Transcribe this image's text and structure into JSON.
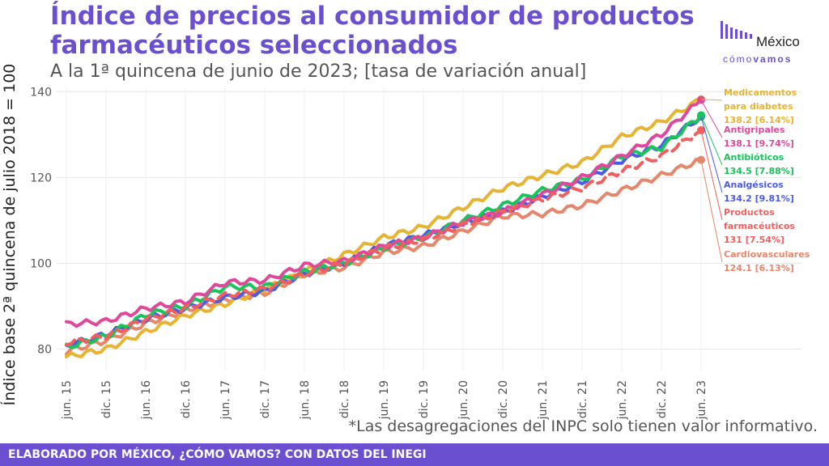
{
  "header": {
    "title": "Índice de precios al consumidor de productos farmacéuticos seleccionados",
    "subtitle": "A la 1ª quincena de junio de 2023; [tasa de variación anual]"
  },
  "logo": {
    "name": "México",
    "sub_a": "cómo",
    "sub_b": "vamos"
  },
  "note": "*Las desagregaciones del INPC solo tienen valor informativo.",
  "footer": "ELABORADO POR MÉXICO, ¿CÓMO VAMOS? CON DATOS DEL INEGI",
  "colors": {
    "accent": "#6a4fd0",
    "diabetes": "#e6b332",
    "antigripales": "#e0499b",
    "antibioticos": "#19c45a",
    "analgesicos": "#4b5be6",
    "farmaceuticos": "#ef5f5f",
    "cardiovasculares": "#e6866a"
  },
  "chart_data": {
    "type": "line",
    "title": "Índice de precios al consumidor de productos farmacéuticos seleccionados",
    "subtitle": "A la 1ª quincena de junio de 2023; [tasa de variación anual]",
    "xlabel": "",
    "ylabel": "Índice base 2ª quincena de julio 2018 = 100",
    "ylim": [
      75,
      141
    ],
    "yticks": [
      80,
      100,
      120,
      140
    ],
    "x_ticks": [
      "jun. 15",
      "dic. 15",
      "jun. 16",
      "dic. 16",
      "jun. 17",
      "dic. 17",
      "jun. 18",
      "dic. 18",
      "jun. 19",
      "dic. 19",
      "jun. 20",
      "dic. 20",
      "jun. 21",
      "dic. 21",
      "jun. 22",
      "dic. 22",
      "jun. 23"
    ],
    "x": [
      "jun. 15",
      "dic. 15",
      "jun. 16",
      "dic. 16",
      "jun. 17",
      "dic. 17",
      "jun. 18",
      "dic. 18",
      "jun. 19",
      "dic. 19",
      "jun. 20",
      "dic. 20",
      "jun. 21",
      "dic. 21",
      "jun. 22",
      "dic. 22",
      "jun. 23"
    ],
    "grid": true,
    "series": [
      {
        "name": "Medicamentos para diabetes",
        "label_value": "138.2 [6.14%]",
        "color": "#e6b332",
        "dashed": false,
        "values": [
          78.2,
          80.0,
          84.0,
          87.8,
          90.5,
          94.0,
          98.0,
          102.0,
          106.0,
          108.5,
          113.0,
          117.5,
          120.5,
          123.5,
          129.5,
          133.0,
          138.2
        ]
      },
      {
        "name": "Antigripales",
        "label_value": "138.1 [9.74%]",
        "color": "#e0499b",
        "dashed": false,
        "values": [
          85.8,
          86.5,
          89.5,
          91.0,
          95.5,
          96.0,
          99.5,
          100.5,
          104.0,
          106.0,
          109.5,
          112.0,
          116.0,
          120.0,
          125.0,
          130.0,
          138.1
        ]
      },
      {
        "name": "Antibióticos",
        "label_value": "134.5 [7.88%]",
        "color": "#19c45a",
        "dashed": false,
        "values": [
          80.5,
          83.0,
          88.0,
          90.0,
          94.5,
          94.5,
          98.0,
          100.0,
          103.5,
          106.0,
          110.0,
          113.5,
          117.0,
          119.5,
          125.0,
          127.0,
          134.5
        ]
      },
      {
        "name": "Analgésicos",
        "label_value": "134.2 [9.81%]",
        "color": "#4b5be6",
        "dashed": false,
        "values": [
          80.8,
          83.5,
          87.0,
          89.5,
          92.0,
          93.5,
          97.5,
          100.0,
          104.0,
          106.5,
          109.5,
          112.0,
          115.5,
          119.0,
          124.0,
          127.5,
          134.2
        ]
      },
      {
        "name": "Productos farmacéuticos",
        "label_value": "131 [7.54%]",
        "color": "#ef5f5f",
        "dashed": true,
        "values": [
          81.5,
          83.0,
          87.0,
          89.5,
          92.5,
          94.0,
          97.5,
          100.0,
          103.5,
          105.5,
          109.0,
          112.0,
          115.0,
          117.5,
          121.5,
          125.0,
          131.0
        ]
      },
      {
        "name": "Cardiovasculares",
        "label_value": "124.1 [6.13%]",
        "color": "#e6866a",
        "dashed": false,
        "values": [
          79.5,
          82.0,
          86.0,
          89.0,
          91.5,
          93.0,
          97.5,
          99.0,
          102.5,
          104.0,
          107.5,
          111.0,
          111.5,
          113.5,
          117.0,
          120.5,
          124.1
        ]
      }
    ]
  }
}
